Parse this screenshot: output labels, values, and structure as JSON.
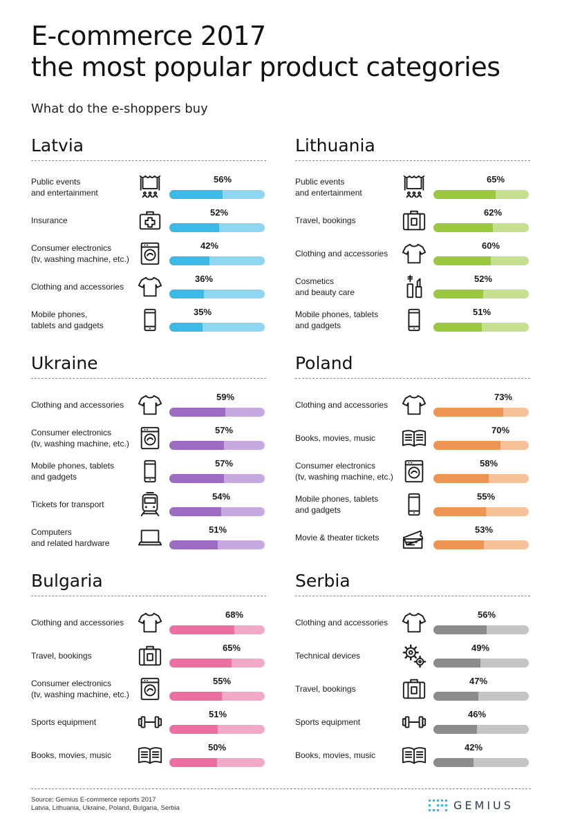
{
  "header": {
    "title_line1": "E-commerce 2017",
    "title_line2": "the most popular product categories",
    "subtitle": "What do the e-shoppers buy"
  },
  "colors": {
    "Latvia": [
      "#3db9e5",
      "#8fd6f2"
    ],
    "Lithuania": [
      "#9ac93f",
      "#c6e090"
    ],
    "Ukraine": [
      "#9b6cc2",
      "#c5a8de"
    ],
    "Poland": [
      "#ef9554",
      "#f6c299"
    ],
    "Bulgaria": [
      "#ec6fa2",
      "#f3a9c8"
    ],
    "Serbia": [
      "#8a8c8e",
      "#c4c5c7"
    ]
  },
  "chart_data": [
    {
      "type": "bar",
      "title": "Latvia",
      "categories": [
        "Public events\nand entertainment",
        "Insurance",
        "Consumer electronics\n(tv, washing machine, etc.)",
        "Clothing and accessories",
        "Mobile phones,\ntablets and gadgets"
      ],
      "values": [
        56,
        52,
        42,
        36,
        35
      ],
      "value_labels": [
        "56%",
        "52%",
        "42%",
        "36%",
        "35%"
      ],
      "icons": [
        "stage-icon",
        "first-aid-icon",
        "washing-machine-icon",
        "tshirt-icon",
        "smartphone-icon"
      ],
      "ylim": [
        0,
        100
      ]
    },
    {
      "type": "bar",
      "title": "Lithuania",
      "categories": [
        "Public events\nand entertainment",
        "Travel, bookings",
        "Clothing and accessories",
        "Cosmetics\nand beauty care",
        "Mobile phones, tablets\nand gadgets"
      ],
      "values": [
        65,
        62,
        60,
        52,
        51
      ],
      "value_labels": [
        "65%",
        "62%",
        "60%",
        "52%",
        "51%"
      ],
      "icons": [
        "stage-icon",
        "suitcase-icon",
        "tshirt-icon",
        "cosmetics-icon",
        "smartphone-icon"
      ],
      "ylim": [
        0,
        100
      ]
    },
    {
      "type": "bar",
      "title": "Ukraine",
      "categories": [
        "Clothing and accessories",
        "Consumer electronics\n(tv, washing machine, etc.)",
        "Mobile phones, tablets\nand gadgets",
        "Tickets for transport",
        "Computers\nand related hardware"
      ],
      "values": [
        59,
        57,
        57,
        54,
        51
      ],
      "value_labels": [
        "59%",
        "57%",
        "57%",
        "54%",
        "51%"
      ],
      "icons": [
        "tshirt-icon",
        "washing-machine-icon",
        "smartphone-icon",
        "train-icon",
        "laptop-icon"
      ],
      "ylim": [
        0,
        100
      ]
    },
    {
      "type": "bar",
      "title": "Poland",
      "categories": [
        "Clothing and accessories",
        "Books, movies, music",
        "Consumer electronics\n(tv, washing machine, etc.)",
        "Mobile phones, tablets\nand gadgets",
        "Movie & theater tickets"
      ],
      "values": [
        73,
        70,
        58,
        55,
        53
      ],
      "value_labels": [
        "73%",
        "70%",
        "58%",
        "55%",
        "53%"
      ],
      "icons": [
        "tshirt-icon",
        "book-icon",
        "washing-machine-icon",
        "smartphone-icon",
        "tickets-icon"
      ],
      "ylim": [
        0,
        100
      ]
    },
    {
      "type": "bar",
      "title": "Bulgaria",
      "categories": [
        "Clothing and accessories",
        "Travel, bookings",
        "Consumer electronics\n(tv, washing machine, etc.)",
        "Sports equipment",
        "Books, movies, music"
      ],
      "values": [
        68,
        65,
        55,
        51,
        50
      ],
      "value_labels": [
        "68%",
        "65%",
        "55%",
        "51%",
        "50%"
      ],
      "icons": [
        "tshirt-icon",
        "suitcase-icon",
        "washing-machine-icon",
        "dumbbell-icon",
        "book-icon"
      ],
      "ylim": [
        0,
        100
      ]
    },
    {
      "type": "bar",
      "title": "Serbia",
      "categories": [
        "Clothing and accessories",
        "Technical devices",
        "Travel, bookings",
        "Sports equipment",
        "Books, movies, music"
      ],
      "values": [
        56,
        49,
        47,
        46,
        42
      ],
      "value_labels": [
        "56%",
        "49%",
        "47%",
        "46%",
        "42%"
      ],
      "icons": [
        "tshirt-icon",
        "gears-icon",
        "suitcase-icon",
        "dumbbell-icon",
        "book-icon"
      ],
      "ylim": [
        0,
        100
      ]
    }
  ],
  "footer": {
    "source_line1": "Source: Gemius E-commerce reports 2017",
    "source_line2": "Latvia, Lithuania, Ukraine, Poland, Bulgaria, Serbia",
    "brand": "GEMIUS"
  }
}
